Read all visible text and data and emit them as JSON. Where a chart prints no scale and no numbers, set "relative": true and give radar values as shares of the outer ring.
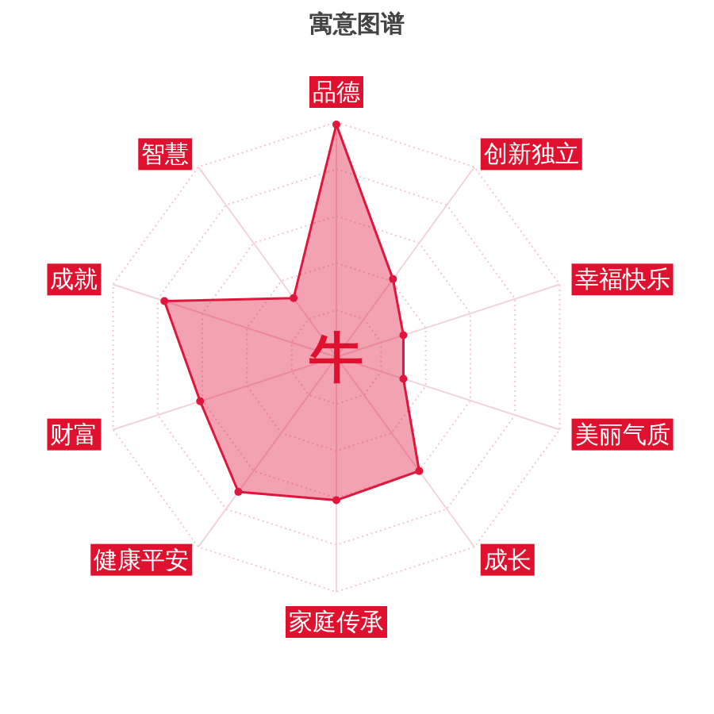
{
  "chart_data": {
    "type": "radar",
    "title": "寓意图谱",
    "categories": [
      "品德",
      "创新独立",
      "幸福快乐",
      "美丽气质",
      "成长",
      "家庭传承",
      "健康平安",
      "财富",
      "成就",
      "智慧"
    ],
    "relative": true,
    "grid": true,
    "marker": "circle",
    "series": [
      {
        "color": "#e0163c",
        "values": [
          0.99,
          0.41,
          0.3,
          0.3,
          0.6,
          0.61,
          0.71,
          0.61,
          0.77,
          0.31
        ]
      }
    ],
    "annotations": [
      "牛"
    ]
  }
}
